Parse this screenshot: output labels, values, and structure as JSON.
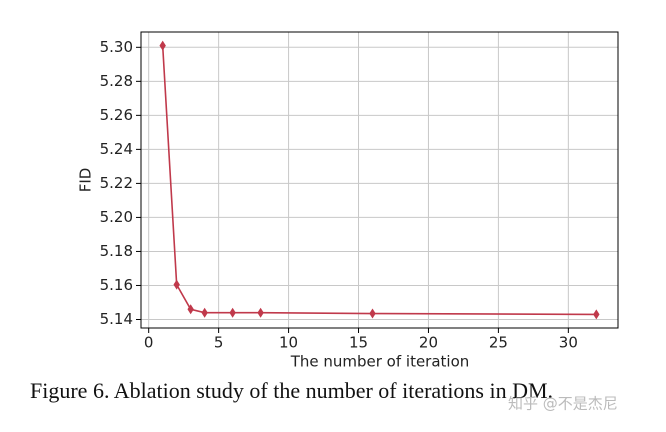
{
  "chart_data": {
    "type": "line",
    "xlabel": "The number of iteration",
    "ylabel": "FID",
    "x": [
      1,
      2,
      3,
      4,
      6,
      8,
      16,
      32
    ],
    "series": [
      {
        "name": "FID",
        "color": "#c0394b",
        "values": [
          5.301,
          5.1605,
          5.146,
          5.144,
          5.144,
          5.144,
          5.1435,
          5.143
        ]
      }
    ],
    "xlim": [
      -0.55,
      33.55
    ],
    "ylim": [
      5.135,
      5.309
    ],
    "xticks": [
      0,
      5,
      10,
      15,
      20,
      25,
      30
    ],
    "yticks": [
      5.14,
      5.16,
      5.18,
      {
        "value": 5.2,
        "label": "5.20"
      },
      5.22,
      5.24,
      5.26,
      5.28,
      {
        "value": 5.3,
        "label": "5.30"
      }
    ],
    "grid": true,
    "caption": "Figure 6. Ablation study of the number of iterations in DM.",
    "watermark": "知乎 @不是杰尼"
  }
}
